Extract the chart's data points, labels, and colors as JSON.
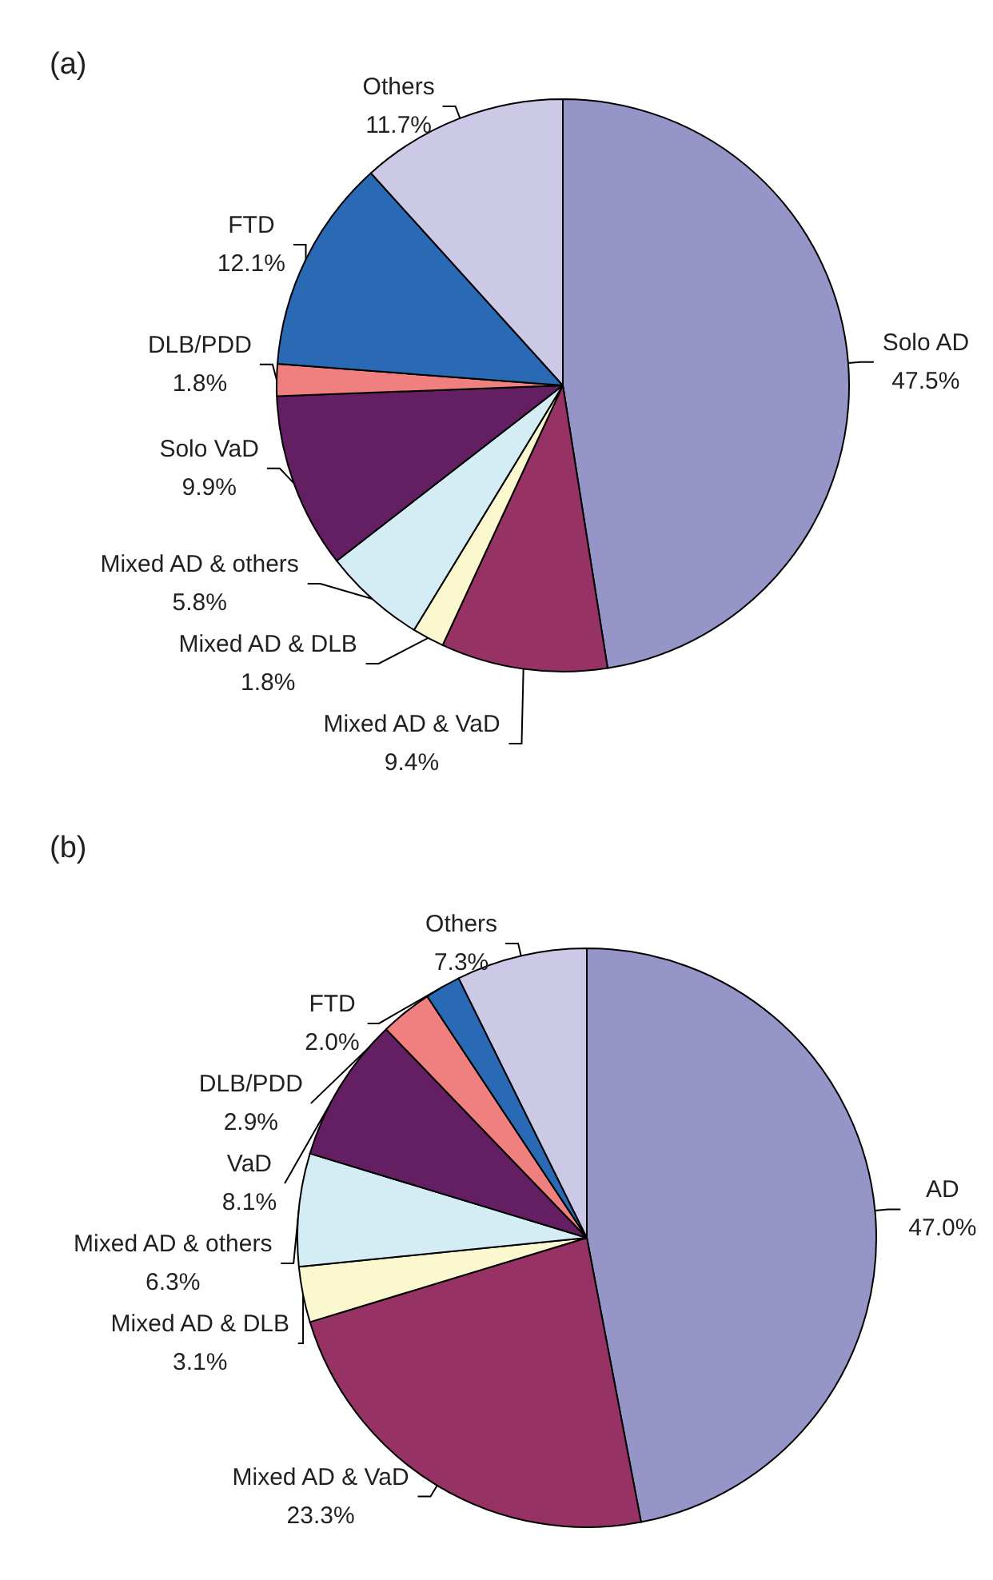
{
  "chart_data": [
    {
      "type": "pie",
      "title": "(a)",
      "categories": [
        "Solo AD",
        "Mixed AD & VaD",
        "Mixed AD & DLB",
        "Mixed AD & others",
        "Solo VaD",
        "DLB/PDD",
        "FTD",
        "Others"
      ],
      "values": [
        47.5,
        9.4,
        1.8,
        5.8,
        9.9,
        1.8,
        12.1,
        11.7
      ],
      "value_labels": [
        "47.5%",
        "9.4%",
        "1.8%",
        "5.8%",
        "9.9%",
        "1.8%",
        "12.1%",
        "11.7%"
      ],
      "colors": [
        "#9595c8",
        "#963264",
        "#fbf7cf",
        "#d4ecf3",
        "#631f61",
        "#f08080",
        "#2a69b3",
        "#ccc9e6"
      ]
    },
    {
      "type": "pie",
      "title": "(b)",
      "categories": [
        "AD",
        "Mixed AD & VaD",
        "Mixed AD & DLB",
        "Mixed AD & others",
        "VaD",
        "DLB/PDD",
        "FTD",
        "Others"
      ],
      "values": [
        47.0,
        23.3,
        3.1,
        6.3,
        8.1,
        2.9,
        2.0,
        7.3
      ],
      "value_labels": [
        "47.0%",
        "23.3%",
        "3.1%",
        "6.3%",
        "8.1%",
        "2.9%",
        "2.0%",
        "7.3%"
      ],
      "colors": [
        "#9595c8",
        "#963264",
        "#fbf7cf",
        "#d4ecf3",
        "#631f61",
        "#f08080",
        "#2a69b3",
        "#ccc9e6"
      ]
    }
  ]
}
